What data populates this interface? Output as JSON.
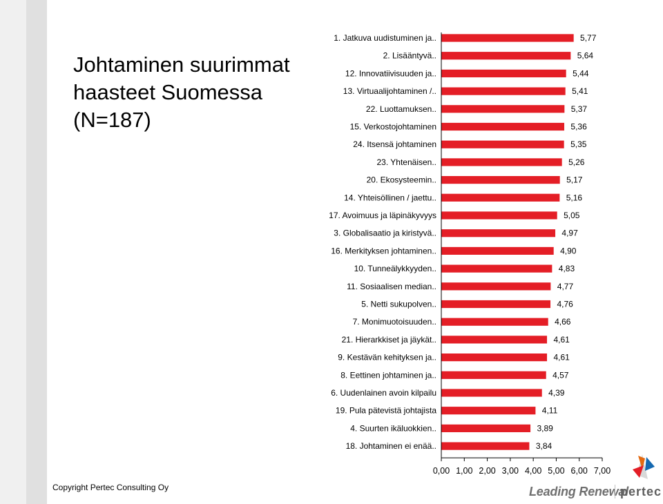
{
  "slide": {
    "title_lines": [
      "Johtaminen suurimmat",
      "haasteet Suomessa",
      "(N=187)"
    ],
    "copyright": "Copyright Pertec Consulting Oy",
    "logo": {
      "tagline": "Leading Renewal",
      "brand": "pertec"
    }
  },
  "chart_data": {
    "type": "bar",
    "orientation": "horizontal",
    "categories": [
      "1. Jatkuva uudistuminen ja..",
      "2. Lisääntyvä..",
      "12. Innovatiivisuuden ja..",
      "13. Virtuaalijohtaminen /..",
      "22. Luottamuksen..",
      "15. Verkostojohtaminen",
      "24. Itsensä johtaminen",
      "23. Yhtenäisen..",
      "20. Ekosysteemin..",
      "14. Yhteisöllinen / jaettu..",
      "17. Avoimuus ja läpinäkyvyys",
      "3. Globalisaatio ja kiristyvä..",
      "16. Merkityksen johtaminen..",
      "10. Tunneälykkyyden..",
      "11. Sosiaalisen median..",
      "5. Netti sukupolven..",
      "7. Monimuotoisuuden..",
      "21. Hierarkkiset ja jäykät..",
      "9. Kestävän kehityksen ja..",
      "8. Eettinen johtaminen ja..",
      "6. Uudenlainen avoin kilpailu",
      "19. Pula pätevistä johtajista",
      "4. Suurten ikäluokkien..",
      "18. Johtaminen ei enää.."
    ],
    "values": [
      5.77,
      5.64,
      5.44,
      5.41,
      5.37,
      5.36,
      5.35,
      5.26,
      5.17,
      5.16,
      5.05,
      4.97,
      4.9,
      4.83,
      4.77,
      4.76,
      4.66,
      4.61,
      4.61,
      4.57,
      4.39,
      4.11,
      3.89,
      3.84
    ],
    "value_labels": [
      "5,77",
      "5,64",
      "5,44",
      "5,41",
      "5,37",
      "5,36",
      "5,35",
      "5,26",
      "5,17",
      "5,16",
      "5,05",
      "4,97",
      "4,90",
      "4,83",
      "4,77",
      "4,76",
      "4,66",
      "4,61",
      "4,61",
      "4,57",
      "4,39",
      "4,11",
      "3,89",
      "3,84"
    ],
    "x_ticks": [
      0,
      1,
      2,
      3,
      4,
      5,
      6,
      7
    ],
    "x_tick_labels": [
      "0,00",
      "1,00",
      "2,00",
      "3,00",
      "4,00",
      "5,00",
      "6,00",
      "7,00"
    ],
    "xlim": [
      0,
      7
    ],
    "xlabel": "",
    "ylabel": "",
    "title": "",
    "grid": false,
    "colors": {
      "bar": "#e41e26",
      "bar_edge": "#ffffff",
      "axis": "#000000",
      "text": "#000000"
    }
  }
}
